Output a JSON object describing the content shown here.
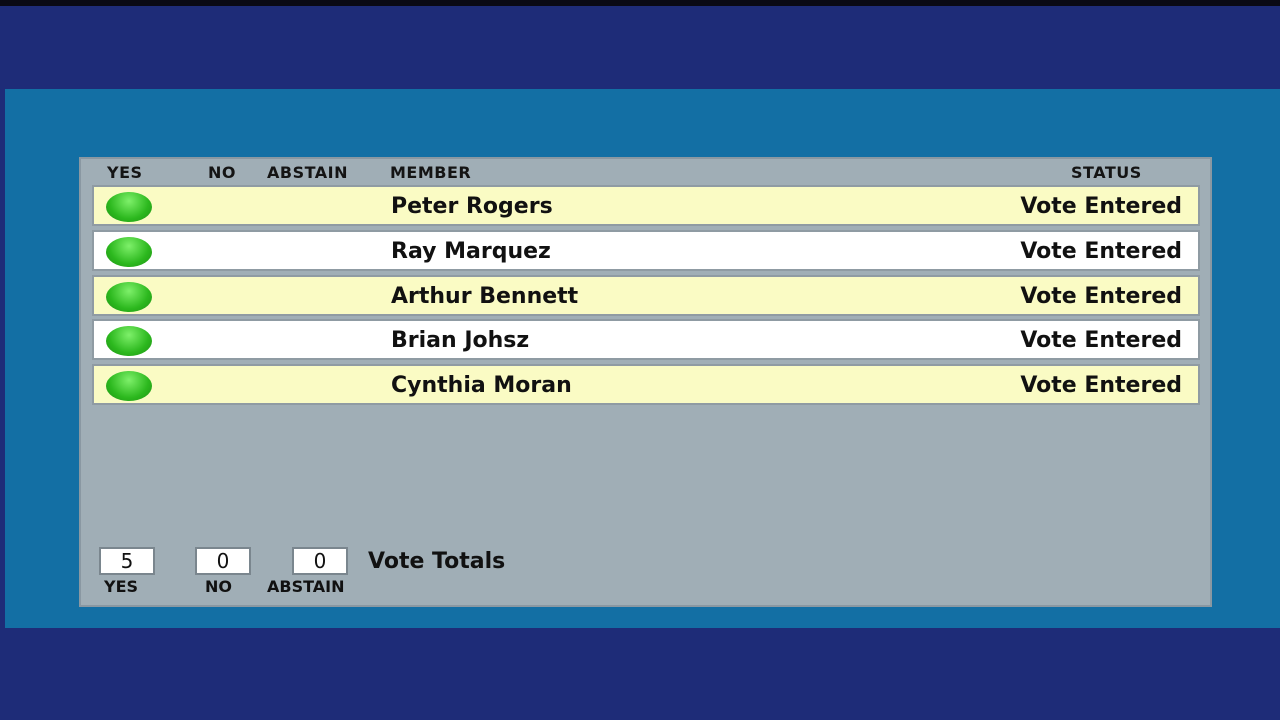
{
  "headers": {
    "yes": "YES",
    "no": "NO",
    "abstain": "ABSTAIN",
    "member": "MEMBER",
    "status": "STATUS"
  },
  "rows": [
    {
      "member": "Peter Rogers",
      "vote": "yes",
      "status": "Vote Entered"
    },
    {
      "member": "Ray Marquez",
      "vote": "yes",
      "status": "Vote Entered"
    },
    {
      "member": "Arthur Bennett",
      "vote": "yes",
      "status": "Vote Entered"
    },
    {
      "member": "Brian Johsz",
      "vote": "yes",
      "status": "Vote Entered"
    },
    {
      "member": "Cynthia Moran",
      "vote": "yes",
      "status": "Vote Entered"
    }
  ],
  "totals": {
    "yes": "5",
    "no": "0",
    "abstain": "0",
    "label": "Vote Totals",
    "yes_label": "YES",
    "no_label": "NO",
    "abstain_label": "ABSTAIN"
  },
  "colors": {
    "yes_indicator": "#2cb81e",
    "row_alt": "#fafbc4",
    "panel": "#a0aeb6",
    "background": "#1e2c78",
    "band": "#136fa4"
  }
}
